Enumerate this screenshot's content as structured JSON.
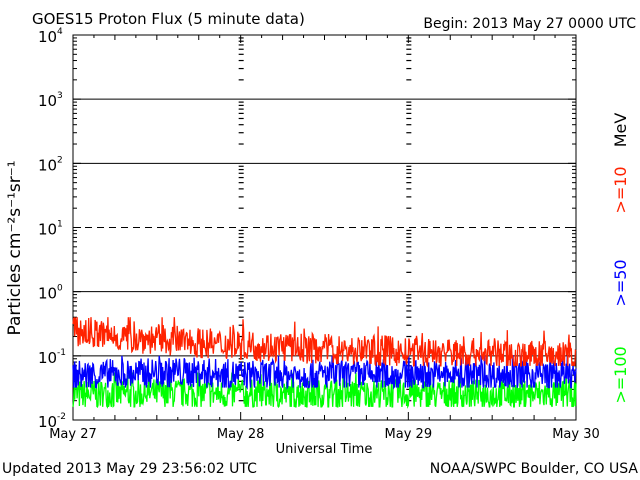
{
  "header": {
    "title": "GOES15 Proton Flux (5 minute data)",
    "begin": "Begin: 2013 May 27 0000 UTC"
  },
  "footer": {
    "updated": "Updated 2013 May 29 23:56:02 UTC",
    "credit": "NOAA/SWPC Boulder, CO USA"
  },
  "chart_data": {
    "type": "line",
    "title": "GOES15 Proton Flux (5 minute data)",
    "xlabel": "Universal Time",
    "ylabel": "Particles cm⁻²s⁻¹sr⁻¹",
    "y_scale": "log",
    "ylim": [
      0.01,
      10000
    ],
    "xlim": [
      "2013-05-27 00:00",
      "2013-05-30 00:00"
    ],
    "x_ticks": [
      "May 27",
      "May 28",
      "May 29",
      "May 30"
    ],
    "y_ticks": [
      {
        "base": "10",
        "exp": "-2"
      },
      {
        "base": "10",
        "exp": "-1"
      },
      {
        "base": "10",
        "exp": "0"
      },
      {
        "base": "10",
        "exp": "1"
      },
      {
        "base": "10",
        "exp": "2"
      },
      {
        "base": "10",
        "exp": "3"
      },
      {
        "base": "10",
        "exp": "4"
      }
    ],
    "reference_lines": [
      {
        "y": 1000,
        "style": "solid"
      },
      {
        "y": 100,
        "style": "solid"
      },
      {
        "y": 10,
        "style": "dashed"
      },
      {
        "y": 1,
        "style": "solid"
      },
      {
        "y": 0.1,
        "style": "solid"
      }
    ],
    "grid": false,
    "legend_position": "right, vertical",
    "legend_unit": "MeV",
    "series": [
      {
        "name": ">=10",
        "color": "#ff2200",
        "x_days": [
          0,
          0.125,
          0.25,
          0.375,
          0.5,
          0.625,
          0.75,
          0.875,
          1.0,
          1.125,
          1.25,
          1.375,
          1.5,
          1.625,
          1.75,
          1.875,
          2.0,
          2.125,
          2.25,
          2.375,
          2.5,
          2.625,
          2.75,
          2.875,
          3.0
        ],
        "values": [
          0.25,
          0.22,
          0.2,
          0.19,
          0.18,
          0.17,
          0.16,
          0.15,
          0.15,
          0.14,
          0.14,
          0.13,
          0.13,
          0.12,
          0.12,
          0.12,
          0.11,
          0.11,
          0.11,
          0.11,
          0.11,
          0.1,
          0.1,
          0.1,
          0.1
        ],
        "noise_low": 0.07,
        "noise_high": 0.4
      },
      {
        "name": ">=50",
        "color": "#0000ff",
        "x_days": [
          0,
          0.25,
          0.5,
          0.75,
          1.0,
          1.25,
          1.5,
          1.75,
          2.0,
          2.25,
          2.5,
          2.75,
          3.0
        ],
        "values": [
          0.05,
          0.05,
          0.055,
          0.055,
          0.05,
          0.05,
          0.05,
          0.05,
          0.05,
          0.05,
          0.05,
          0.05,
          0.05
        ],
        "noise_low": 0.032,
        "noise_high": 0.1
      },
      {
        "name": ">=100",
        "color": "#00ff00",
        "x_days": [
          0,
          0.25,
          0.5,
          0.75,
          1.0,
          1.25,
          1.5,
          1.75,
          2.0,
          2.25,
          2.5,
          2.75,
          3.0
        ],
        "values": [
          0.025,
          0.025,
          0.026,
          0.026,
          0.025,
          0.025,
          0.025,
          0.025,
          0.025,
          0.025,
          0.025,
          0.025,
          0.025
        ],
        "noise_low": 0.016,
        "noise_high": 0.055
      }
    ]
  }
}
